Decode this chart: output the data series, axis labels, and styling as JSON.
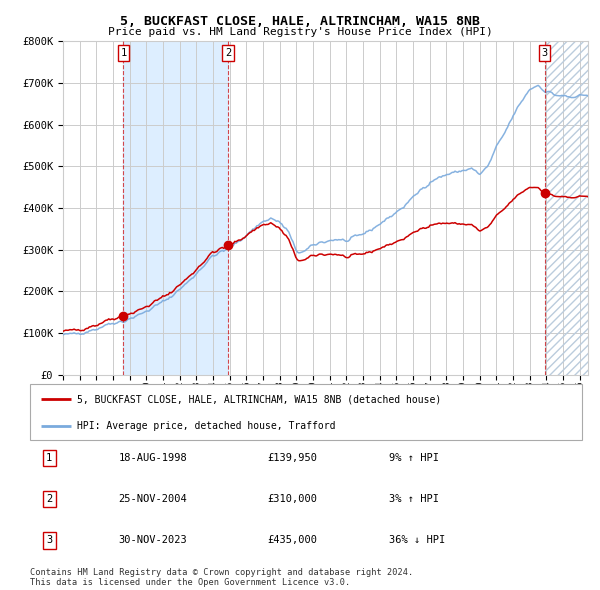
{
  "title": "5, BUCKFAST CLOSE, HALE, ALTRINCHAM, WA15 8NB",
  "subtitle": "Price paid vs. HM Land Registry's House Price Index (HPI)",
  "ylim": [
    0,
    800000
  ],
  "yticks": [
    0,
    100000,
    200000,
    300000,
    400000,
    500000,
    600000,
    700000,
    800000
  ],
  "ytick_labels": [
    "£0",
    "£100K",
    "£200K",
    "£300K",
    "£400K",
    "£500K",
    "£600K",
    "£700K",
    "£800K"
  ],
  "xlim_start": 1995.0,
  "xlim_end": 2026.5,
  "hpi_color": "#7aaadd",
  "price_color": "#cc0000",
  "sale_dot_color": "#cc0000",
  "background_color": "#ffffff",
  "grid_color": "#cccccc",
  "shade_color": "#ddeeff",
  "legend_label_red": "5, BUCKFAST CLOSE, HALE, ALTRINCHAM, WA15 8NB (detached house)",
  "legend_label_blue": "HPI: Average price, detached house, Trafford",
  "sales": [
    {
      "num": 1,
      "date": "18-AUG-1998",
      "price": 139950,
      "year": 1998.625,
      "hpi_pct": "9% ↑ HPI"
    },
    {
      "num": 2,
      "date": "25-NOV-2004",
      "price": 310000,
      "year": 2004.9,
      "hpi_pct": "3% ↑ HPI"
    },
    {
      "num": 3,
      "date": "30-NOV-2023",
      "price": 435000,
      "year": 2023.9,
      "hpi_pct": "36% ↓ HPI"
    }
  ],
  "footnote": "Contains HM Land Registry data © Crown copyright and database right 2024.\nThis data is licensed under the Open Government Licence v3.0."
}
